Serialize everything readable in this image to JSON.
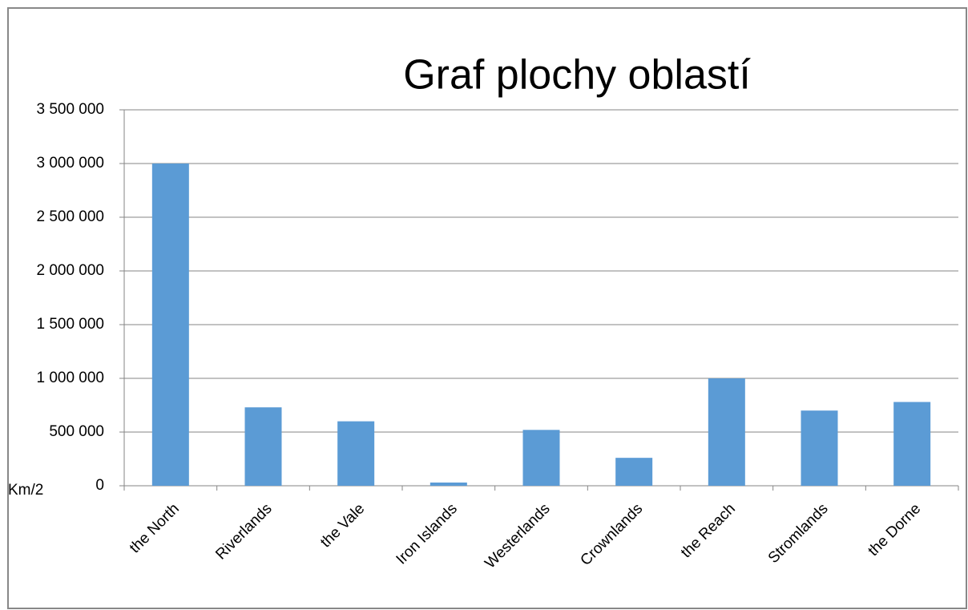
{
  "chart_data": {
    "type": "bar",
    "title": "Graf plochy oblastí",
    "y_label": "Km/2",
    "categories": [
      "the North",
      "Riverlands",
      "the Vale",
      "Iron Islands",
      "Westerlands",
      "Crownlands",
      "the Reach",
      "Stromlands",
      "the Dorne"
    ],
    "values": [
      3000000,
      730000,
      600000,
      30000,
      520000,
      260000,
      1000000,
      700000,
      780000
    ],
    "color": "#5b9bd5",
    "ylim": [
      0,
      3500000
    ],
    "yticks": [
      0,
      {
        "value": 500000,
        "label": "500 000"
      },
      {
        "value": 1000000,
        "label": "1 000 000"
      },
      {
        "value": 1500000,
        "label": "1 500 000"
      },
      {
        "value": 2000000,
        "label": "2 000 000"
      },
      {
        "value": 2500000,
        "label": "2 500 000"
      },
      {
        "value": 3000000,
        "label": "3 000 000"
      },
      {
        "value": 3500000,
        "label": "3 500 000"
      }
    ],
    "grid": true
  }
}
